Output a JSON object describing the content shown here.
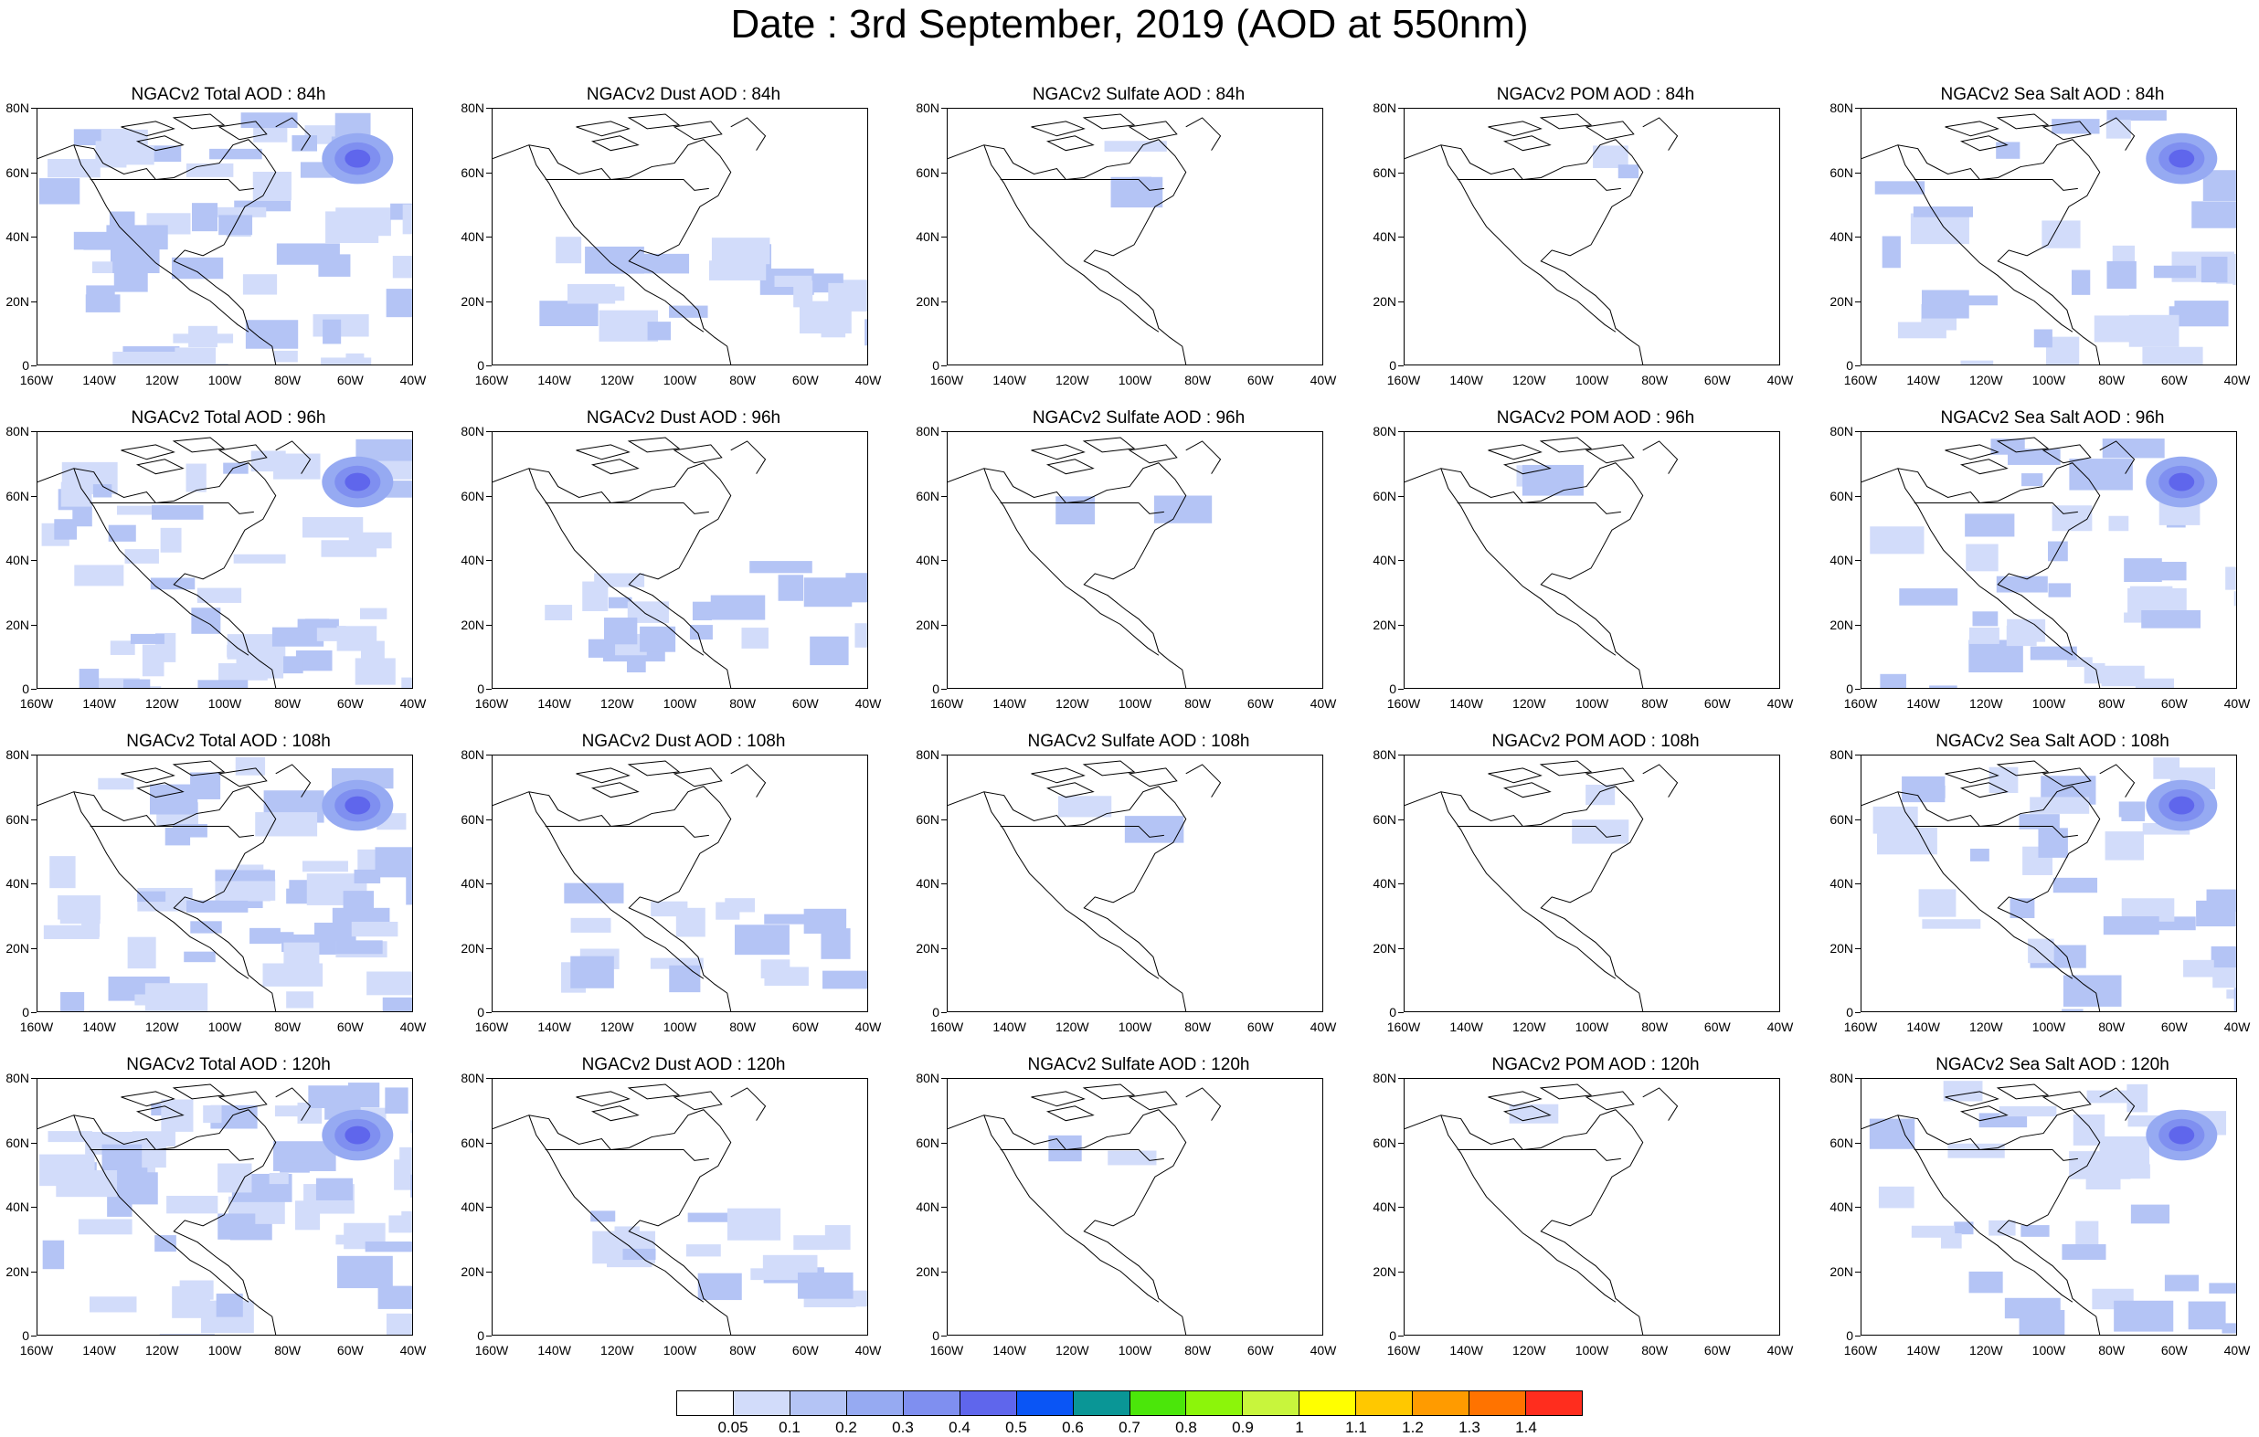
{
  "title": "Date : 3rd September, 2019 (AOD at 550nm)",
  "panels": [
    [
      {
        "title": "NGACv2 Total AOD : 84h",
        "variable": "total",
        "fill": 0.9,
        "hotspot": true
      },
      {
        "title": "NGACv2 Dust AOD : 84h",
        "variable": "dust",
        "fill": 0.35,
        "hotspot": false
      },
      {
        "title": "NGACv2 Sulfate AOD : 84h",
        "variable": "sulfate",
        "fill": 0.05,
        "hotspot": false
      },
      {
        "title": "NGACv2 POM AOD : 84h",
        "variable": "pom",
        "fill": 0.04,
        "hotspot": false
      },
      {
        "title": "NGACv2 Sea Salt AOD : 84h",
        "variable": "seasalt",
        "fill": 0.55,
        "hotspot": true
      }
    ],
    [
      {
        "title": "NGACv2 Total AOD : 96h",
        "variable": "total",
        "fill": 0.9,
        "hotspot": true
      },
      {
        "title": "NGACv2 Dust AOD : 96h",
        "variable": "dust",
        "fill": 0.35,
        "hotspot": false
      },
      {
        "title": "NGACv2 Sulfate AOD : 96h",
        "variable": "sulfate",
        "fill": 0.04,
        "hotspot": false
      },
      {
        "title": "NGACv2 POM AOD : 96h",
        "variable": "pom",
        "fill": 0.04,
        "hotspot": false
      },
      {
        "title": "NGACv2 Sea Salt AOD : 96h",
        "variable": "seasalt",
        "fill": 0.6,
        "hotspot": true
      }
    ],
    [
      {
        "title": "NGACv2 Total AOD : 108h",
        "variable": "total",
        "fill": 0.95,
        "hotspot": true
      },
      {
        "title": "NGACv2 Dust AOD : 108h",
        "variable": "dust",
        "fill": 0.3,
        "hotspot": false
      },
      {
        "title": "NGACv2 Sulfate AOD : 108h",
        "variable": "sulfate",
        "fill": 0.04,
        "hotspot": false
      },
      {
        "title": "NGACv2 POM AOD : 108h",
        "variable": "pom",
        "fill": 0.03,
        "hotspot": false
      },
      {
        "title": "NGACv2 Sea Salt AOD : 108h",
        "variable": "seasalt",
        "fill": 0.6,
        "hotspot": true
      }
    ],
    [
      {
        "title": "NGACv2 Total AOD : 120h",
        "variable": "total",
        "fill": 0.95,
        "hotspot": true
      },
      {
        "title": "NGACv2 Dust AOD : 120h",
        "variable": "dust",
        "fill": 0.28,
        "hotspot": false
      },
      {
        "title": "NGACv2 Sulfate AOD : 120h",
        "variable": "sulfate",
        "fill": 0.03,
        "hotspot": false
      },
      {
        "title": "NGACv2 POM AOD : 120h",
        "variable": "pom",
        "fill": 0.02,
        "hotspot": false
      },
      {
        "title": "NGACv2 Sea Salt  AOD : 120h",
        "variable": "seasalt",
        "fill": 0.55,
        "hotspot": true
      }
    ]
  ],
  "lat_labels": [
    "80N",
    "60N",
    "40N",
    "20N",
    "0"
  ],
  "lon_labels": [
    "160W",
    "140W",
    "120W",
    "100W",
    "80W",
    "60W",
    "40W"
  ],
  "colorbar": {
    "colors": [
      "#ffffff",
      "#d2dcfa",
      "#b4c4f5",
      "#96aaf2",
      "#7f8ff0",
      "#5f66ec",
      "#0a55f5",
      "#0a9696",
      "#4be60a",
      "#8cf50a",
      "#c8f53c",
      "#ffff00",
      "#ffc800",
      "#ff9b00",
      "#ff7300",
      "#ff2d1e"
    ],
    "labels": [
      "0.05",
      "0.1",
      "0.2",
      "0.3",
      "0.4",
      "0.5",
      "0.6",
      "0.7",
      "0.8",
      "0.9",
      "1",
      "1.1",
      "1.2",
      "1.3",
      "1.4"
    ]
  }
}
